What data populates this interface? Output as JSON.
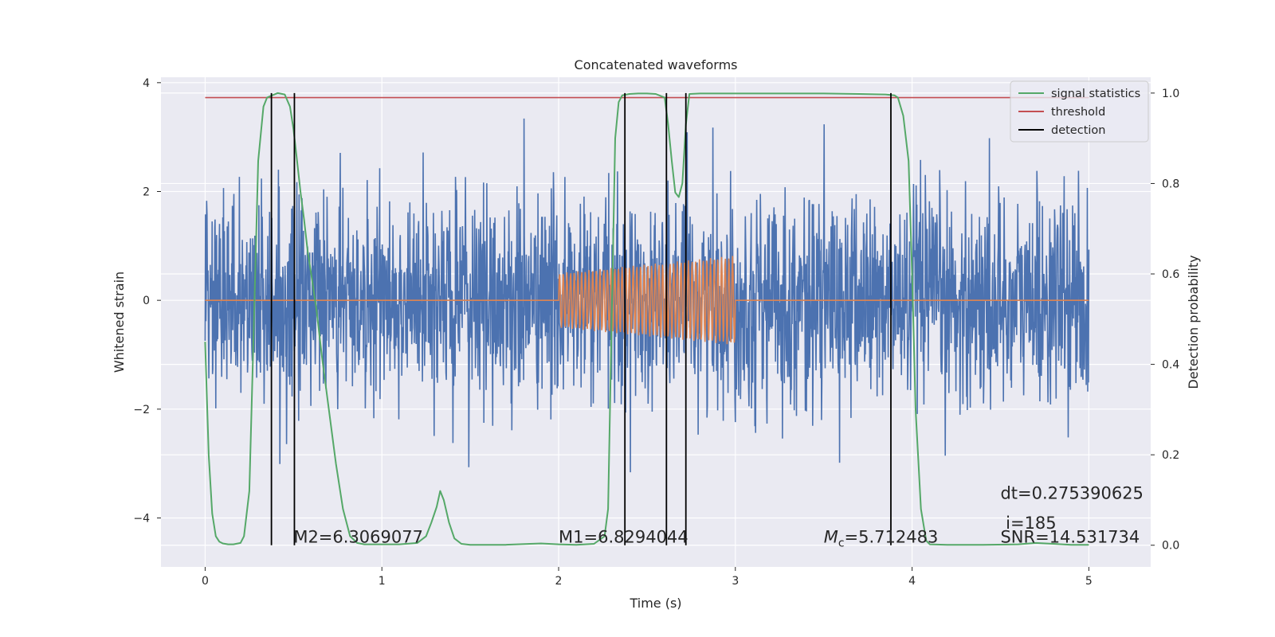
{
  "chart_data": {
    "type": "line",
    "title": "Concatenated waveforms",
    "xlabel": "Time (s)",
    "ylabel": "Whitened strain",
    "y2label": "Detection probability",
    "xlim": [
      -0.25,
      5.35
    ],
    "ylim": [
      -4.9,
      4.1
    ],
    "y2lim": [
      -0.048,
      1.035
    ],
    "xticks": [
      0,
      1,
      2,
      3,
      4,
      5
    ],
    "xtick_labels": [
      "0",
      "1",
      "2",
      "3",
      "4",
      "5"
    ],
    "yticks": [
      -4,
      -2,
      0,
      2,
      4
    ],
    "ytick_labels": [
      "−4",
      "−2",
      "0",
      "2",
      "4"
    ],
    "y2ticks": [
      0.0,
      0.2,
      0.4,
      0.6,
      0.8,
      1.0
    ],
    "y2tick_labels": [
      "0.0",
      "0.2",
      "0.4",
      "0.6",
      "0.8",
      "1.0"
    ],
    "grid": true,
    "legend_position": "top-right",
    "legend": [
      {
        "label": "signal statistics",
        "color": "#55a868"
      },
      {
        "label": "threshold",
        "color": "#c44e52"
      },
      {
        "label": "detection",
        "color": "#000000"
      }
    ],
    "colors": {
      "strain": "#4c72b0",
      "template": "#dd8452",
      "signal_statistics": "#55a868",
      "threshold": "#c44e52",
      "detection": "#000000",
      "axes_background": "#eaeaf2",
      "grid": "#ffffff"
    },
    "series": [
      {
        "role": "strain",
        "x_range": [
          0,
          5
        ],
        "approx_amplitude": 2.5,
        "seed": 17
      },
      {
        "role": "template",
        "x_start": 2.0,
        "x_end": 3.0,
        "amp_start": 0.5,
        "amp_end": 0.82,
        "cycles": 48
      },
      {
        "role": "signal_statistics",
        "axis": "y2",
        "x": [
          0,
          0.02,
          0.04,
          0.06,
          0.08,
          0.1,
          0.13,
          0.16,
          0.2,
          0.22,
          0.25,
          0.28,
          0.3,
          0.33,
          0.35,
          0.38,
          0.41,
          0.45,
          0.48,
          0.5,
          0.52,
          0.54,
          0.56,
          0.58,
          0.6,
          0.63,
          0.66,
          0.7,
          0.74,
          0.78,
          0.82,
          0.86,
          0.9,
          1.0,
          1.1,
          1.2,
          1.25,
          1.28,
          1.31,
          1.33,
          1.35,
          1.38,
          1.41,
          1.45,
          1.5,
          1.7,
          1.9,
          2.0,
          2.1,
          2.2,
          2.26,
          2.28,
          2.3,
          2.32,
          2.34,
          2.36,
          2.4,
          2.45,
          2.5,
          2.55,
          2.6,
          2.62,
          2.64,
          2.66,
          2.68,
          2.7,
          2.72,
          2.74,
          2.8,
          3.0,
          3.2,
          3.5,
          3.7,
          3.85,
          3.9,
          3.92,
          3.95,
          3.98,
          4.0,
          4.02,
          4.05,
          4.08,
          4.1,
          4.2,
          4.4,
          4.6,
          4.7,
          4.8,
          4.9,
          5.0
        ],
        "y": [
          0.45,
          0.2,
          0.07,
          0.02,
          0.008,
          0.004,
          0.002,
          0.002,
          0.005,
          0.02,
          0.12,
          0.55,
          0.85,
          0.97,
          0.99,
          0.995,
          1.0,
          0.997,
          0.97,
          0.92,
          0.85,
          0.78,
          0.72,
          0.65,
          0.6,
          0.52,
          0.42,
          0.3,
          0.18,
          0.08,
          0.02,
          0.005,
          0.002,
          0.002,
          0.002,
          0.005,
          0.02,
          0.05,
          0.085,
          0.12,
          0.1,
          0.05,
          0.015,
          0.003,
          0.001,
          0.001,
          0.004,
          0.002,
          0.001,
          0.003,
          0.02,
          0.08,
          0.5,
          0.9,
          0.98,
          0.995,
          0.998,
          0.999,
          0.999,
          0.998,
          0.99,
          0.93,
          0.85,
          0.78,
          0.77,
          0.8,
          0.93,
          0.998,
          0.999,
          0.999,
          0.999,
          0.999,
          0.998,
          0.997,
          0.995,
          0.99,
          0.95,
          0.85,
          0.6,
          0.3,
          0.08,
          0.01,
          0.002,
          0.001,
          0.001,
          0.002,
          0.005,
          0.003,
          0.001,
          0.001
        ]
      },
      {
        "role": "threshold",
        "axis": "y2",
        "x": [
          0,
          5
        ],
        "y": [
          0.99,
          0.99
        ]
      },
      {
        "role": "detection",
        "axis": "y2",
        "x": [
          0.375,
          0.505,
          2.375,
          2.61,
          2.72,
          3.88
        ],
        "y_range": [
          0,
          1
        ]
      }
    ],
    "annotations": [
      {
        "x": 0.5,
        "y": -4.45,
        "text": "M2=6.3069077"
      },
      {
        "x": 2.0,
        "y": -4.45,
        "text": "M1=6.8294044"
      },
      {
        "x": 3.5,
        "y": -4.45,
        "text_italic": "M",
        "text_sub": "c",
        "text_rest": "=5.712483"
      },
      {
        "x": 4.5,
        "y": -3.65,
        "text": "dt=0.275390625"
      },
      {
        "x": 4.5,
        "y": -4.2,
        "text": " i=185"
      },
      {
        "x": 4.5,
        "y": -4.45,
        "text": "SNR=14.531734"
      }
    ]
  }
}
